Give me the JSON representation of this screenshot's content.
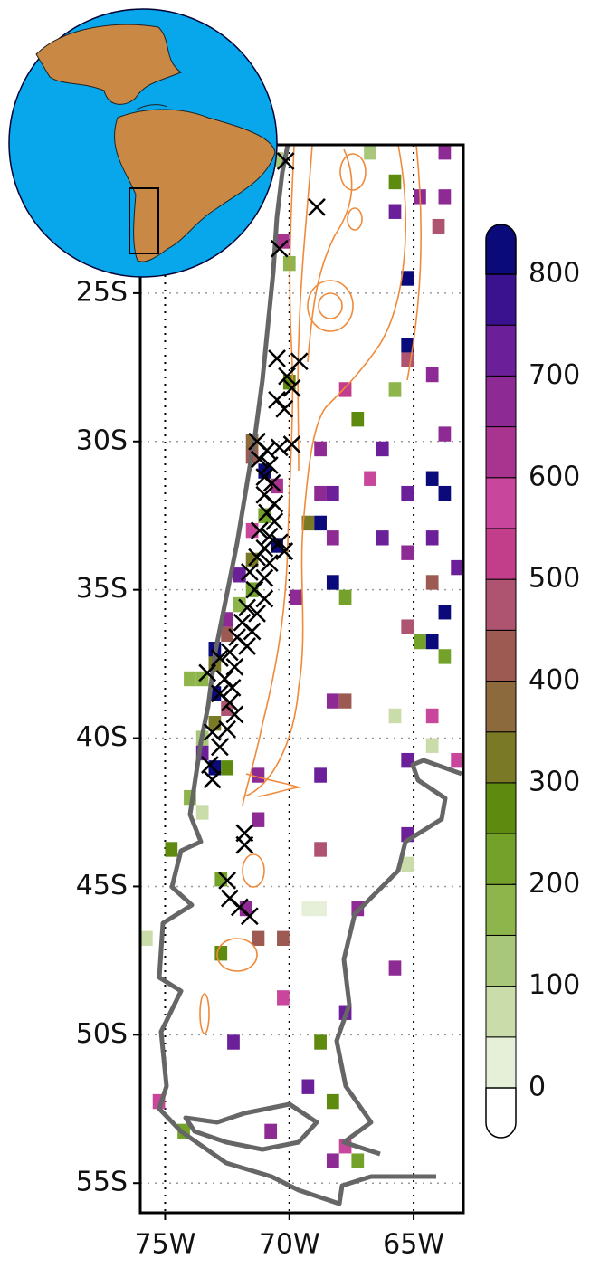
{
  "chart_data": {
    "type": "grid-map",
    "xlim": [
      -76,
      -63
    ],
    "ylim": [
      -56,
      -20
    ],
    "xticks": [
      {
        "value": -75,
        "label": "75W"
      },
      {
        "value": -70,
        "label": "70W"
      },
      {
        "value": -65,
        "label": "65W"
      }
    ],
    "yticks": [
      {
        "value": -25,
        "label": "25S"
      },
      {
        "value": -30,
        "label": "30S"
      },
      {
        "value": -35,
        "label": "35S"
      },
      {
        "value": -40,
        "label": "40S"
      },
      {
        "value": -45,
        "label": "45S"
      },
      {
        "value": -50,
        "label": "50S"
      },
      {
        "value": -55,
        "label": "55S"
      }
    ],
    "grid": true,
    "cells": {
      "lon": [
        -63.75,
        -66.75,
        -65.75,
        -64.75,
        -63.75,
        -65.75,
        -64.0,
        -70.25,
        -65.25,
        -65.25,
        -65.25,
        -64.25,
        -67.75,
        -65.75,
        -67.25,
        -63.75,
        -68.75,
        -66.25,
        -66.75,
        -64.25,
        -68.75,
        -68.25,
        -65.25,
        -63.75,
        -69.25,
        -68.75,
        -68.25,
        -66.25,
        -65.25,
        -64.25,
        -63.25,
        -64.25,
        -68.25,
        -67.75,
        -69.75,
        -63.75,
        -65.25,
        -64.75,
        -64.25,
        -63.75,
        -68.25,
        -67.75,
        -65.75,
        -64.25,
        -64.25,
        -65.25,
        -63.25,
        -71.25,
        -68.75,
        -71.25,
        -65.25,
        -74.75,
        -68.75,
        -65.25,
        -72.75,
        -69.25,
        -68.75,
        -67.25,
        -71.75,
        -71.25,
        -70.25,
        -75.75,
        -72.75,
        -65.75,
        -70.25,
        -67.75,
        -68.75,
        -72.25,
        -69.25,
        -68.25,
        -75.25,
        -70.75,
        -74.25,
        -67.75,
        -68.25,
        -67.25,
        -71.5,
        -71.0,
        -70.5,
        -71.0,
        -71.5,
        -70.5,
        -71.5,
        -72.0,
        -71.5,
        -72.0,
        -72.5,
        -72.5,
        -73.0,
        -73.0,
        -73.5,
        -73.0,
        -72.5,
        -73.0,
        -73.5,
        -73.5,
        -73.0,
        -72.5,
        -74.0,
        -73.5,
        -74.0,
        -71.5,
        -70.0,
        -70.0,
        -70.5
      ],
      "lat": [
        -20.25,
        -20.25,
        -21.25,
        -21.75,
        -21.75,
        -22.25,
        -22.75,
        -23.25,
        -24.5,
        -26.75,
        -27.25,
        -27.75,
        -28.25,
        -28.25,
        -29.25,
        -29.75,
        -30.25,
        -30.25,
        -31.25,
        -31.25,
        -31.75,
        -31.75,
        -31.75,
        -31.75,
        -32.75,
        -32.75,
        -33.25,
        -33.25,
        -33.75,
        -33.25,
        -34.25,
        -34.75,
        -34.75,
        -35.25,
        -35.25,
        -35.75,
        -36.25,
        -36.75,
        -36.75,
        -37.25,
        -38.75,
        -38.75,
        -39.25,
        -39.25,
        -40.25,
        -40.75,
        -40.75,
        -41.25,
        -41.25,
        -42.75,
        -43.25,
        -43.75,
        -43.75,
        -44.25,
        -44.75,
        -45.75,
        -45.75,
        -45.75,
        -45.75,
        -46.75,
        -46.75,
        -46.75,
        -47.25,
        -47.75,
        -48.75,
        -49.25,
        -50.25,
        -50.25,
        -51.75,
        -52.25,
        -52.25,
        -53.25,
        -53.25,
        -53.75,
        -54.25,
        -54.25,
        -30.5,
        -31.0,
        -31.5,
        -32.5,
        -33.0,
        -33.5,
        -34.0,
        -34.5,
        -35.0,
        -35.5,
        -36.0,
        -36.5,
        -37.0,
        -37.5,
        -38.0,
        -38.5,
        -39.0,
        -39.5,
        -40.0,
        -40.5,
        -41.0,
        -41.0,
        -42.0,
        -42.5,
        -38.0,
        -30.0,
        -28.0,
        -24.0,
        -20.5
      ],
      "values": [
        650,
        120,
        280,
        660,
        680,
        700,
        480,
        640,
        850,
        820,
        470,
        690,
        520,
        180,
        280,
        660,
        650,
        700,
        550,
        830,
        680,
        720,
        700,
        820,
        300,
        850,
        680,
        700,
        650,
        700,
        700,
        440,
        830,
        200,
        650,
        820,
        470,
        200,
        830,
        230,
        650,
        420,
        60,
        560,
        60,
        700,
        570,
        680,
        700,
        680,
        720,
        250,
        460,
        90,
        200,
        40,
        40,
        680,
        650,
        430,
        430,
        60,
        280,
        680,
        560,
        700,
        250,
        700,
        700,
        250,
        560,
        650,
        220,
        550,
        680,
        220,
        430,
        820,
        640,
        200,
        560,
        820,
        300,
        700,
        200,
        160,
        680,
        400,
        820,
        300,
        150,
        800,
        450,
        300,
        120,
        720,
        820,
        260,
        150,
        90,
        160,
        380,
        250,
        180,
        140
      ]
    },
    "stations": {
      "lon": [
        -70.15,
        -68.9,
        -70.4,
        -70.5,
        -69.6,
        -70.1,
        -69.9,
        -70.5,
        -70.2,
        -71.3,
        -70.9,
        -70.4,
        -69.9,
        -71.2,
        -70.8,
        -71.0,
        -70.7,
        -71.0,
        -70.6,
        -70.9,
        -70.6,
        -71.2,
        -70.8,
        -70.4,
        -70.2,
        -71.0,
        -71.3,
        -70.8,
        -71.6,
        -71.0,
        -71.4,
        -71.0,
        -71.7,
        -71.3,
        -71.9,
        -71.5,
        -72.1,
        -71.7,
        -72.4,
        -72.8,
        -72.2,
        -73.3,
        -72.6,
        -72.3,
        -72.8,
        -72.4,
        -72.2,
        -72.5,
        -73.1,
        -72.8,
        -73.2,
        -73.1,
        -71.8,
        -71.8,
        -72.5,
        -72.4,
        -72.0,
        -71.6
      ],
      "lat": [
        -20.55,
        -22.1,
        -23.5,
        -27.2,
        -27.3,
        -27.8,
        -28.2,
        -28.6,
        -28.9,
        -30.0,
        -30.3,
        -30.2,
        -30.1,
        -30.6,
        -30.8,
        -31.2,
        -31.4,
        -31.8,
        -32.1,
        -32.4,
        -32.7,
        -33.0,
        -33.2,
        -33.4,
        -33.7,
        -33.6,
        -33.9,
        -34.1,
        -34.4,
        -34.6,
        -35.0,
        -35.3,
        -35.6,
        -35.8,
        -36.1,
        -36.4,
        -36.6,
        -36.9,
        -37.1,
        -37.3,
        -37.6,
        -37.8,
        -38.0,
        -38.3,
        -38.5,
        -38.8,
        -39.2,
        -39.7,
        -39.8,
        -40.3,
        -40.9,
        -41.4,
        -43.2,
        -43.6,
        -44.8,
        -45.4,
        -45.7,
        -46.0
      ]
    },
    "colorbar": {
      "levels": [
        0,
        50,
        100,
        150,
        200,
        250,
        300,
        350,
        400,
        450,
        500,
        550,
        600,
        650,
        700,
        750,
        800
      ],
      "colors": [
        "#ffffff",
        "#e6efd8",
        "#c9dcaa",
        "#a8c77a",
        "#8db54b",
        "#73a12a",
        "#5f8a10",
        "#7a7a26",
        "#8c6a3e",
        "#9c5a52",
        "#ae5470",
        "#c23e8a",
        "#c8479c",
        "#a8348f",
        "#8e2a93",
        "#6b1f98",
        "#3a1290",
        "#0a0a7a"
      ],
      "ticks": [
        0,
        100,
        200,
        300,
        400,
        500,
        600,
        700,
        800
      ]
    }
  }
}
